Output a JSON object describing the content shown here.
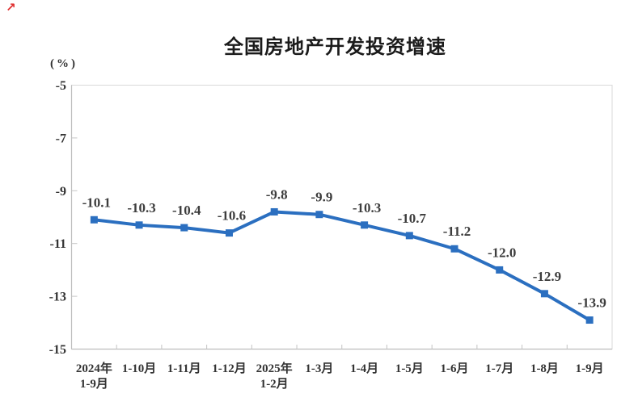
{
  "icons": {
    "trend_arrow": {
      "glyph": "↗",
      "color": "#e03131"
    }
  },
  "chart_data": {
    "type": "line",
    "title": "全国房地产开发投资增速",
    "unit_label": "(%)",
    "categories": [
      [
        "2024年",
        "1-9月"
      ],
      [
        "1-10月"
      ],
      [
        "1-11月"
      ],
      [
        "1-12月"
      ],
      [
        "2025年",
        "1-2月"
      ],
      [
        "1-3月"
      ],
      [
        "1-4月"
      ],
      [
        "1-5月"
      ],
      [
        "1-6月"
      ],
      [
        "1-7月"
      ],
      [
        "1-8月"
      ],
      [
        "1-9月"
      ]
    ],
    "values": [
      -10.1,
      -10.3,
      -10.4,
      -10.6,
      -9.8,
      -9.9,
      -10.3,
      -10.7,
      -11.2,
      -12.0,
      -12.9,
      -13.9
    ],
    "data_labels": [
      "-10.1",
      "-10.3",
      "-10.4",
      "-10.6",
      "-9.8",
      "-9.9",
      "-10.3",
      "-10.7",
      "-11.2",
      "-12.0",
      "-12.9",
      "-13.9"
    ],
    "ylim": [
      -15,
      -5
    ],
    "yticks": [
      -5,
      -7,
      -9,
      -11,
      -13,
      -15
    ],
    "ytick_labels": [
      "-5",
      "-7",
      "-9",
      "-11",
      "-13",
      "-15"
    ],
    "xlabel": "",
    "ylabel": "(%)",
    "grid": "off",
    "legend": "none",
    "marker": "square",
    "line_color": "#2b6fc0",
    "axis_color": "#bdbdbd",
    "border_color": "#d8d8d8",
    "tick_color": "#c4c4c4",
    "label_color": "#333333"
  }
}
